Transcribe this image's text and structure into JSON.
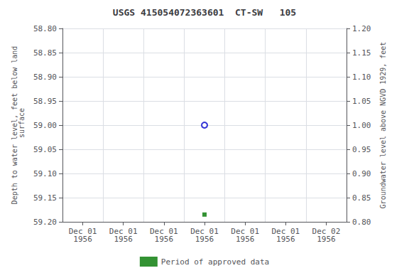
{
  "chart_data": {
    "type": "scatter",
    "title": "USGS 415054072363601  CT-SW   105",
    "ylabel": "Depth to water level, feet below land\n surface",
    "y2label": "Groundwater level above NGVD 1929, feet",
    "categories": [
      "Dec 01\n1956",
      "Dec 01\n1956",
      "Dec 01\n1956",
      "Dec 01\n1956",
      "Dec 01\n1956",
      "Dec 01\n1956",
      "Dec 02\n1956"
    ],
    "series": [
      {
        "color": "#0000cc",
        "marker": "open_circle",
        "values": [
          null,
          null,
          null,
          59.0,
          null,
          null,
          null
        ]
      },
      {
        "name": "Period of approved data",
        "color": "#007700",
        "marker": "square",
        "values": [
          null,
          null,
          null,
          59.185,
          null,
          null,
          null
        ]
      }
    ],
    "ylim": [
      59.2,
      58.8
    ],
    "yticks": [
      {
        "value": 58.8,
        "label": "58.80"
      },
      {
        "value": 58.85,
        "label": "58.85"
      },
      {
        "value": 58.9,
        "label": "58.90"
      },
      {
        "value": 58.95,
        "label": "58.95"
      },
      {
        "value": 59.0,
        "label": "59.00"
      },
      {
        "value": 59.05,
        "label": "59.05"
      },
      {
        "value": 59.1,
        "label": "59.10"
      },
      {
        "value": 59.15,
        "label": "59.15"
      },
      {
        "value": 59.2,
        "label": "59.20"
      }
    ],
    "y2lim": [
      0.8,
      1.2
    ],
    "y2ticks": [
      {
        "value": 0.8,
        "label": "0.80"
      },
      {
        "value": 0.85,
        "label": "0.85"
      },
      {
        "value": 0.9,
        "label": "0.90"
      },
      {
        "value": 0.95,
        "label": "0.95"
      },
      {
        "value": 1.0,
        "label": "1.00"
      },
      {
        "value": 1.05,
        "label": "1.05"
      },
      {
        "value": 1.1,
        "label": "1.10"
      },
      {
        "value": 1.15,
        "label": "1.15"
      },
      {
        "value": 1.2,
        "label": "1.20"
      }
    ],
    "grid": true,
    "legend": "bottom"
  }
}
